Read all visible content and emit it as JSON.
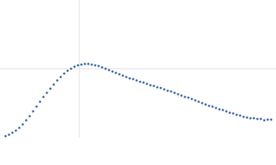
{
  "chart_data": {
    "type": "scatter",
    "x": [
      8,
      13,
      18,
      23,
      28,
      33,
      38,
      43,
      48,
      53,
      58,
      63,
      68,
      73,
      78,
      83,
      88,
      93,
      98,
      103,
      108,
      113,
      118,
      123,
      128,
      133,
      138,
      143,
      148,
      153,
      158,
      163,
      168,
      173,
      178,
      183,
      188,
      193,
      198,
      203,
      208,
      213,
      218,
      223,
      228,
      233,
      238,
      243,
      248,
      253,
      258,
      263,
      268,
      273,
      278,
      283,
      288,
      293,
      298,
      303,
      308,
      313,
      318,
      323,
      328,
      333,
      338,
      343,
      348,
      353,
      358,
      363,
      368,
      373,
      378,
      383,
      388,
      393
    ],
    "values": [
      2,
      4,
      7,
      10,
      14,
      19,
      25,
      31,
      38,
      45,
      52,
      59,
      65,
      71,
      77,
      83,
      88,
      93,
      97,
      100,
      103,
      105,
      106,
      107,
      107,
      106,
      105,
      104,
      102,
      100,
      98,
      96,
      94,
      92,
      90,
      88,
      86,
      85,
      83,
      81,
      80,
      78,
      76,
      75,
      73,
      72,
      70,
      68,
      67,
      65,
      63,
      61,
      59,
      58,
      56,
      54,
      52,
      50,
      48,
      46,
      45,
      43,
      41,
      40,
      38,
      36,
      35,
      33,
      32,
      30,
      29,
      28,
      28,
      27,
      27,
      25,
      26,
      26
    ],
    "color": "#3a66a8",
    "xlim": [
      0,
      400
    ],
    "ylim": [
      0,
      200
    ],
    "xticks": [
      115
    ],
    "yticks": [
      100
    ],
    "grid": true
  }
}
